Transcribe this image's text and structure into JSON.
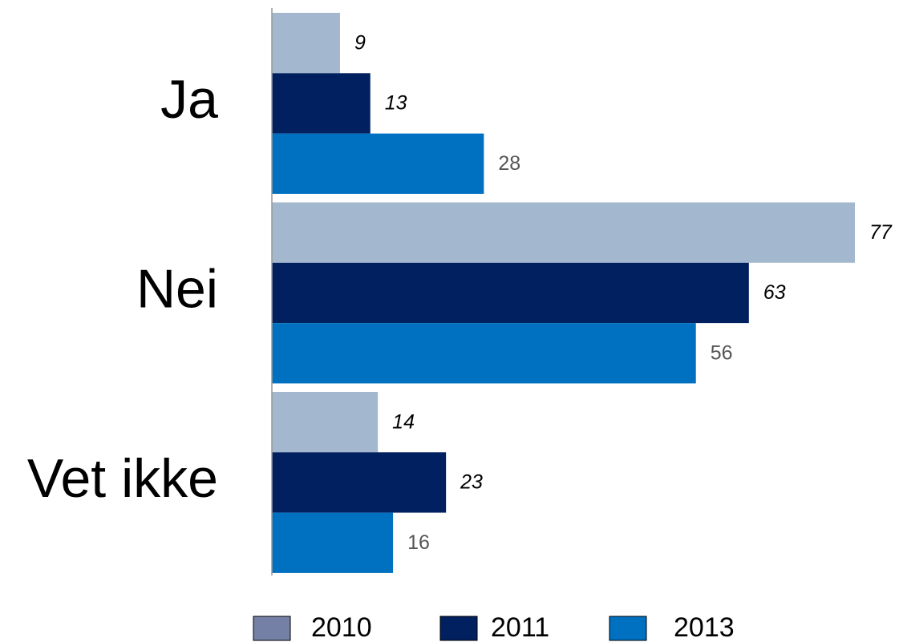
{
  "chart_data": {
    "type": "hbar",
    "categories": [
      "Ja",
      "Nei",
      "Vet ikke"
    ],
    "series": [
      {
        "name": "2010",
        "color": "#a3b8cf",
        "legend_color": "#7480a6",
        "values": [
          9,
          77,
          14
        ]
      },
      {
        "name": "2011",
        "color": "#002060",
        "legend_color": "#002060",
        "values": [
          13,
          63,
          23
        ]
      },
      {
        "name": "2013",
        "color": "#0070c0",
        "legend_color": "#0070c0",
        "values": [
          28,
          56,
          16
        ]
      }
    ]
  }
}
